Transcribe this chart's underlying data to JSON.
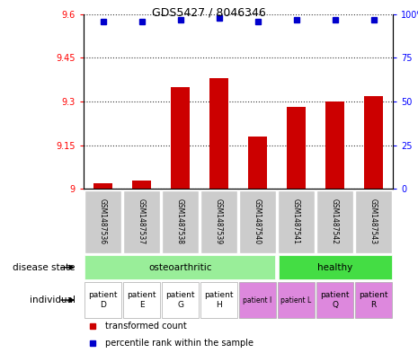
{
  "title": "GDS5427 / 8046346",
  "samples": [
    "GSM1487536",
    "GSM1487537",
    "GSM1487538",
    "GSM1487539",
    "GSM1487540",
    "GSM1487541",
    "GSM1487542",
    "GSM1487543"
  ],
  "bar_values": [
    9.02,
    9.03,
    9.35,
    9.38,
    9.18,
    9.28,
    9.3,
    9.32
  ],
  "percentile_values": [
    96,
    96,
    97,
    98,
    96,
    97,
    97,
    97
  ],
  "bar_color": "#cc0000",
  "percentile_color": "#0000cc",
  "ylim_left": [
    9.0,
    9.6
  ],
  "ylim_right": [
    0,
    100
  ],
  "yticks_left": [
    9.0,
    9.15,
    9.3,
    9.45,
    9.6
  ],
  "yticks_right": [
    0,
    25,
    50,
    75,
    100
  ],
  "ytick_labels_left": [
    "9",
    "9.15",
    "9.3",
    "9.45",
    "9.6"
  ],
  "ytick_labels_right": [
    "0",
    "25",
    "50",
    "75",
    "100%"
  ],
  "disease_colors": {
    "osteoarthritic": "#99ee99",
    "healthy": "#44dd44"
  },
  "individuals": [
    "patient\nD",
    "patient\nE",
    "patient\nG",
    "patient\nH",
    "patient I",
    "patient L",
    "patient\nQ",
    "patient\nR"
  ],
  "individual_colors": [
    "#ffffff",
    "#ffffff",
    "#ffffff",
    "#ffffff",
    "#dd88dd",
    "#dd88dd",
    "#dd88dd",
    "#dd88dd"
  ],
  "individual_small": [
    false,
    false,
    false,
    false,
    true,
    true,
    false,
    false
  ],
  "sample_bg_color": "#cccccc",
  "legend_red_label": "transformed count",
  "legend_blue_label": "percentile rank within the sample"
}
